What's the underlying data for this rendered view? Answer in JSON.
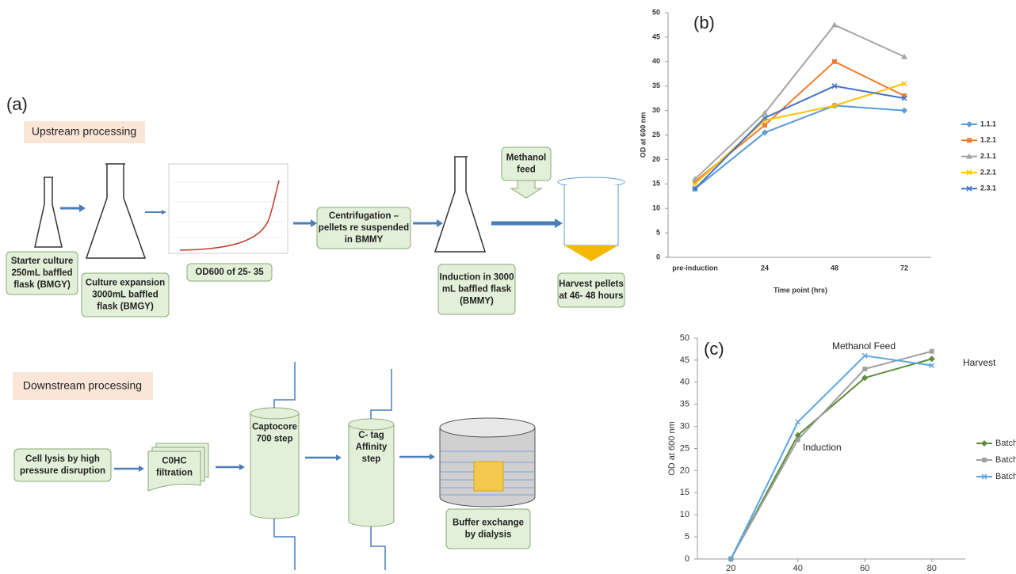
{
  "panels": [
    "(a)"
  ],
  "diagram": {
    "upstream_title": "Upstream processing",
    "downstream_title": "Downstream processing",
    "upstream_steps": [
      [
        "Starter culture",
        "250mL baffled",
        "flask (BMGY)"
      ],
      [
        "Culture expansion",
        "3000mL baffled",
        "flask (BMGY)"
      ],
      [
        "OD600 of 25- 35"
      ],
      [
        "Centrifugation –",
        "pellets re suspended",
        "in BMMY"
      ],
      [
        "Induction in 3000",
        "mL baffled flask",
        "(BMMY)"
      ],
      [
        "Methanol",
        "feed"
      ],
      [
        "Harvest pellets",
        "at 46- 48 hours"
      ]
    ],
    "downstream_steps": [
      [
        "Cell lysis by high",
        "pressure disruption"
      ],
      [
        "C0HC",
        "filtration"
      ],
      [
        "Captocore",
        "700 step"
      ],
      [
        "C- tag",
        "Affinity",
        "step"
      ],
      [
        "Buffer exchange",
        "by dialysis"
      ]
    ]
  },
  "chart_data": [
    {
      "type": "line",
      "panel_label": "(b)",
      "x_label": "Time point (hrs)",
      "y_label": "OD at 600 nm",
      "categories": [
        "pre-induction",
        "24",
        "48",
        "72"
      ],
      "ylim": [
        0,
        50
      ],
      "yticks": [
        0,
        5,
        10,
        15,
        20,
        25,
        30,
        35,
        40,
        45,
        50
      ],
      "legend": "right",
      "series": [
        {
          "name": "1.1.1",
          "color": "#5b9bd5",
          "marker": "diamond",
          "values": [
            14,
            25.5,
            31,
            30
          ]
        },
        {
          "name": "1.2.1",
          "color": "#ed7d31",
          "marker": "square",
          "values": [
            15.5,
            27,
            40,
            33
          ]
        },
        {
          "name": "2.1.1",
          "color": "#a5a5a5",
          "marker": "triangle",
          "values": [
            16,
            29.5,
            47.5,
            41
          ]
        },
        {
          "name": "2.2.1",
          "color": "#ffc000",
          "marker": "cross",
          "values": [
            15,
            28,
            31,
            35.5
          ]
        },
        {
          "name": "2.3.1",
          "color": "#4472c4",
          "marker": "cross",
          "values": [
            14,
            28.5,
            35,
            32.5
          ]
        }
      ]
    },
    {
      "type": "line",
      "panel_label": "(c)",
      "y_label": "OD at 600 nm",
      "x": [
        20,
        40,
        60,
        80
      ],
      "xlim": [
        10,
        90
      ],
      "xticks": [
        20,
        40,
        60,
        80
      ],
      "ylim": [
        0,
        50
      ],
      "yticks": [
        0,
        5,
        10,
        15,
        20,
        25,
        30,
        35,
        40,
        45,
        50
      ],
      "legend": "right",
      "annotations": [
        "Methanol Feed",
        "Harvest",
        "Induction"
      ],
      "series": [
        {
          "name": "Batch",
          "color": "#5e8c3a",
          "marker": "diamond",
          "values": [
            0,
            28,
            41,
            45.3
          ]
        },
        {
          "name": "Batch",
          "color": "#a0a0a0",
          "marker": "square",
          "values": [
            0,
            27,
            43,
            47
          ]
        },
        {
          "name": "Batch",
          "color": "#5aa7e0",
          "marker": "cross",
          "values": [
            0,
            31,
            46,
            43.8
          ]
        }
      ]
    }
  ]
}
